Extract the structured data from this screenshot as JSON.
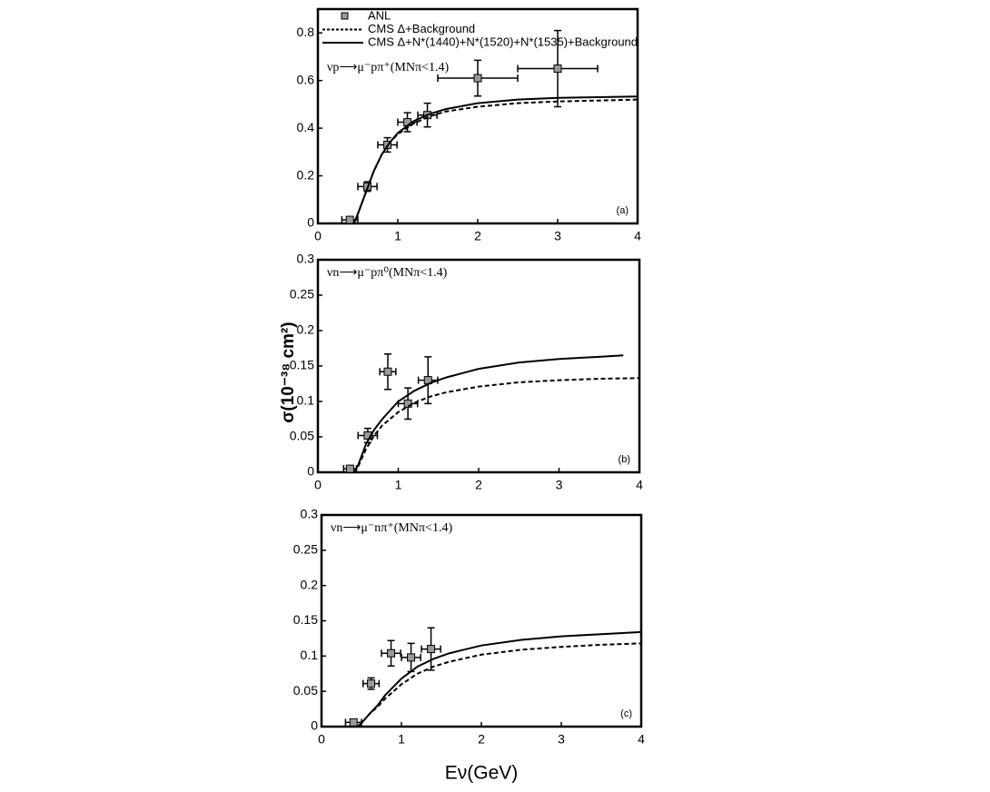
{
  "xlabel": "Eν(GeV)",
  "ylabel": "σ(10⁻³⁸ cm²)",
  "chart_data": [
    {
      "type": "line",
      "annotation": "νp⟶μ⁻pπ⁺(MNπ<1.4)",
      "panel_label": "(a)",
      "xlim": [
        0,
        4
      ],
      "xticks": [
        0,
        1,
        2,
        3,
        4
      ],
      "ylim": [
        0,
        0.9
      ],
      "yticks": [
        0,
        0.2,
        0.4,
        0.6,
        0.8
      ],
      "series": [
        {
          "name": "ANL",
          "marker": "square",
          "color": "#999999",
          "x": [
            0.4,
            0.62,
            0.87,
            1.12,
            1.37,
            2.0,
            3.0
          ],
          "values": [
            0.015,
            0.155,
            0.33,
            0.425,
            0.455,
            0.61,
            0.65
          ],
          "xerr": [
            0.1,
            0.12,
            0.12,
            0.12,
            0.12,
            0.5,
            0.5
          ],
          "yerr": [
            0.01,
            0.02,
            0.03,
            0.04,
            0.05,
            0.075,
            0.16
          ]
        },
        {
          "name": "CMS Δ+Background",
          "dash": true,
          "color": "#000000",
          "x": [
            0.45,
            0.5,
            0.6,
            0.7,
            0.8,
            0.9,
            1.0,
            1.2,
            1.4,
            1.6,
            2,
            2.5,
            3,
            3.5,
            4
          ],
          "values": [
            0,
            0.04,
            0.13,
            0.22,
            0.29,
            0.34,
            0.375,
            0.42,
            0.45,
            0.47,
            0.49,
            0.505,
            0.512,
            0.516,
            0.52
          ]
        },
        {
          "name": "CMS Δ+N*(1440)+N*(1520)+N*(1535)+Background",
          "dash": false,
          "color": "#000000",
          "x": [
            0.45,
            0.5,
            0.6,
            0.7,
            0.8,
            0.9,
            1.0,
            1.2,
            1.4,
            1.6,
            2,
            2.5,
            3,
            3.5,
            4
          ],
          "values": [
            0,
            0.04,
            0.13,
            0.22,
            0.29,
            0.34,
            0.38,
            0.43,
            0.46,
            0.48,
            0.505,
            0.52,
            0.527,
            0.53,
            0.533
          ]
        }
      ]
    },
    {
      "type": "line",
      "annotation": "νn⟶μ⁻pπ⁰(MNπ<1.4)",
      "panel_label": "(b)",
      "xlim": [
        0,
        4
      ],
      "xticks": [
        0,
        1,
        2,
        3,
        4
      ],
      "ylim": [
        0,
        0.3
      ],
      "yticks": [
        0,
        0.05,
        0.1,
        0.15,
        0.2,
        0.25,
        0.3
      ],
      "series": [
        {
          "marker": "square",
          "color": "#999999",
          "x": [
            0.4,
            0.62,
            0.87,
            1.12,
            1.37
          ],
          "values": [
            0.005,
            0.052,
            0.142,
            0.097,
            0.13
          ],
          "xerr": [
            0.08,
            0.12,
            0.1,
            0.12,
            0.12
          ],
          "yerr": [
            0.004,
            0.01,
            0.025,
            0.022,
            0.033
          ]
        },
        {
          "dash": true,
          "color": "#000000",
          "x": [
            0.45,
            0.5,
            0.6,
            0.7,
            0.8,
            1,
            1.2,
            1.4,
            1.6,
            2,
            2.5,
            3,
            3.5,
            4
          ],
          "values": [
            0,
            0.008,
            0.033,
            0.052,
            0.066,
            0.085,
            0.098,
            0.107,
            0.113,
            0.121,
            0.127,
            0.13,
            0.132,
            0.133
          ]
        },
        {
          "dash": false,
          "color": "#000000",
          "x": [
            0.45,
            0.5,
            0.6,
            0.7,
            0.8,
            1,
            1.2,
            1.4,
            1.6,
            2,
            2.5,
            3,
            3.5,
            3.8
          ],
          "values": [
            0,
            0.01,
            0.04,
            0.06,
            0.075,
            0.1,
            0.115,
            0.126,
            0.134,
            0.146,
            0.155,
            0.16,
            0.163,
            0.165
          ]
        }
      ]
    },
    {
      "type": "line",
      "annotation": "νn⟶μ⁻nπ⁺(MNπ<1.4)",
      "panel_label": "(c)",
      "xlim": [
        0,
        4
      ],
      "xticks": [
        0,
        1,
        2,
        3,
        4
      ],
      "ylim": [
        0,
        0.3
      ],
      "yticks": [
        0,
        0.05,
        0.1,
        0.15,
        0.2,
        0.25,
        0.3
      ],
      "series": [
        {
          "marker": "square",
          "color": "#999999",
          "x": [
            0.4,
            0.62,
            0.87,
            1.12,
            1.37
          ],
          "values": [
            0.006,
            0.061,
            0.104,
            0.098,
            0.11
          ],
          "xerr": [
            0.1,
            0.1,
            0.12,
            0.12,
            0.12
          ],
          "yerr": [
            0.004,
            0.008,
            0.018,
            0.02,
            0.03
          ]
        },
        {
          "dash": true,
          "color": "#000000",
          "x": [
            0.45,
            0.5,
            0.6,
            0.7,
            0.8,
            1,
            1.2,
            1.4,
            1.6,
            2,
            2.5,
            3,
            3.5,
            4
          ],
          "values": [
            0,
            0.005,
            0.018,
            0.028,
            0.04,
            0.06,
            0.075,
            0.085,
            0.092,
            0.102,
            0.109,
            0.113,
            0.116,
            0.118
          ]
        },
        {
          "dash": false,
          "color": "#000000",
          "x": [
            0.45,
            0.5,
            0.6,
            0.7,
            0.8,
            1,
            1.2,
            1.4,
            1.6,
            2,
            2.5,
            3,
            3.5,
            4
          ],
          "values": [
            0,
            0.005,
            0.018,
            0.03,
            0.045,
            0.068,
            0.085,
            0.096,
            0.104,
            0.115,
            0.123,
            0.128,
            0.131,
            0.134
          ]
        }
      ]
    }
  ]
}
